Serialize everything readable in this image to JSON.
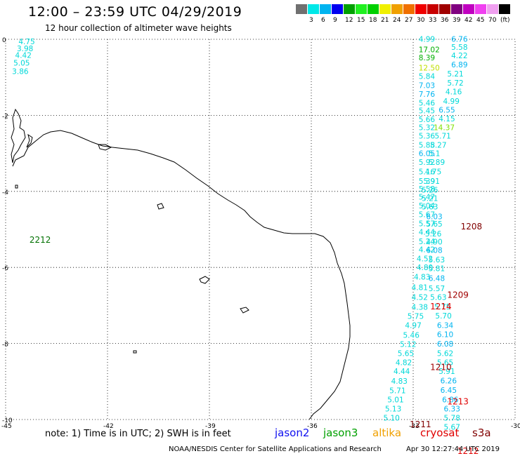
{
  "header": {
    "title": "12:00 – 23:59 UTC 04/29/2019",
    "subtitle": "12 hour collection of altimeter wave heights"
  },
  "colorbar": {
    "cells": [
      {
        "color": "#707070",
        "label": ""
      },
      {
        "color": "#00e8e8",
        "label": "3"
      },
      {
        "color": "#00b4f0",
        "label": "6"
      },
      {
        "color": "#0000f0",
        "label": "9"
      },
      {
        "color": "#00a000",
        "label": "12"
      },
      {
        "color": "#20f020",
        "label": "15"
      },
      {
        "color": "#00d000",
        "label": "18"
      },
      {
        "color": "#f0f000",
        "label": "21"
      },
      {
        "color": "#f0a000",
        "label": "24"
      },
      {
        "color": "#f07000",
        "label": "27"
      },
      {
        "color": "#f00000",
        "label": "30"
      },
      {
        "color": "#c80000",
        "label": "33"
      },
      {
        "color": "#a00000",
        "label": "36"
      },
      {
        "color": "#800080",
        "label": "39"
      },
      {
        "color": "#c000c0",
        "label": "42"
      },
      {
        "color": "#f040f0",
        "label": "45"
      },
      {
        "color": "#f0a0f0",
        "label": "70"
      },
      {
        "color": "#000000",
        "label": "(ft)"
      }
    ]
  },
  "axes": {
    "lon_ticks": [
      "-45",
      "-42",
      "-39",
      "-36",
      "-33",
      "-30"
    ],
    "lat_ticks": [
      "0",
      "-2",
      "-4",
      "-6",
      "-8",
      "-10"
    ]
  },
  "track_labels": [
    {
      "lon": -44.3,
      "lat": -5.35,
      "text": "2212",
      "color": "#007000"
    },
    {
      "lon": -31.6,
      "lat": -5.0,
      "text": "1208",
      "color": "#800000"
    },
    {
      "lon": -32.0,
      "lat": -6.8,
      "text": "1209",
      "color": "#a00000"
    },
    {
      "lon": -32.5,
      "lat": -7.1,
      "text": "1214",
      "color": "#e00000"
    },
    {
      "lon": -32.5,
      "lat": -8.7,
      "text": "1210",
      "color": "#a00000"
    },
    {
      "lon": -32.0,
      "lat": -9.6,
      "text": "1213",
      "color": "#e00000"
    },
    {
      "lon": -33.1,
      "lat": -10.2,
      "text": "1211",
      "color": "#800000"
    },
    {
      "lon": -31.7,
      "lat": -10.9,
      "text": "1212",
      "color": "#e00000"
    }
  ],
  "wave_heights": [
    {
      "lon": -44.62,
      "lat": -0.13,
      "text": "4.75",
      "color": "#00d8d8"
    },
    {
      "lon": -44.67,
      "lat": -0.31,
      "text": "3.98",
      "color": "#00d8d8"
    },
    {
      "lon": -44.72,
      "lat": -0.49,
      "text": "4.42",
      "color": "#00d8d8"
    },
    {
      "lon": -44.77,
      "lat": -0.69,
      "text": "5.05",
      "color": "#00d8d8"
    },
    {
      "lon": -44.81,
      "lat": -0.91,
      "text": "3.86",
      "color": "#00d8d8"
    },
    {
      "lon": -32.84,
      "lat": -0.06,
      "text": "4.99",
      "color": "#00d8d8"
    },
    {
      "lon": -32.84,
      "lat": -0.34,
      "text": "17.02",
      "color": "#00b000"
    },
    {
      "lon": -32.84,
      "lat": -0.55,
      "text": "8.39",
      "color": "#00b000"
    },
    {
      "lon": -32.84,
      "lat": -0.82,
      "text": "12.50",
      "color": "#c0e000"
    },
    {
      "lon": -32.84,
      "lat": -1.04,
      "text": "5.84",
      "color": "#00d8d8"
    },
    {
      "lon": -32.84,
      "lat": -1.28,
      "text": "7.03",
      "color": "#00b4f0"
    },
    {
      "lon": -32.84,
      "lat": -1.51,
      "text": "7.76",
      "color": "#00b4f0"
    },
    {
      "lon": -32.84,
      "lat": -1.74,
      "text": "5.46",
      "color": "#00d8d8"
    },
    {
      "lon": -32.84,
      "lat": -1.95,
      "text": "5.45",
      "color": "#00d8d8"
    },
    {
      "lon": -32.84,
      "lat": -2.18,
      "text": "5.66",
      "color": "#00d8d8"
    },
    {
      "lon": -32.84,
      "lat": -2.39,
      "text": "5.32",
      "color": "#00d8d8"
    },
    {
      "lon": -32.84,
      "lat": -2.61,
      "text": "5.36",
      "color": "#00d8d8"
    },
    {
      "lon": -32.84,
      "lat": -2.85,
      "text": "5.88",
      "color": "#00d8d8"
    },
    {
      "lon": -32.84,
      "lat": -3.07,
      "text": "6.05",
      "color": "#00b4f0"
    },
    {
      "lon": -32.84,
      "lat": -3.3,
      "text": "5.92",
      "color": "#00d8d8"
    },
    {
      "lon": -32.84,
      "lat": -3.55,
      "text": "5.16",
      "color": "#00d8d8"
    },
    {
      "lon": -32.84,
      "lat": -3.8,
      "text": "5.39",
      "color": "#00d8d8"
    },
    {
      "lon": -32.84,
      "lat": -4.0,
      "text": "5.58",
      "color": "#00d8d8"
    },
    {
      "lon": -32.84,
      "lat": -4.22,
      "text": "5.47",
      "color": "#00d8d8"
    },
    {
      "lon": -32.84,
      "lat": -4.45,
      "text": "5.04",
      "color": "#00d8d8"
    },
    {
      "lon": -32.84,
      "lat": -4.68,
      "text": "5.67",
      "color": "#00d8d8"
    },
    {
      "lon": -32.84,
      "lat": -4.92,
      "text": "5.57",
      "color": "#00d8d8"
    },
    {
      "lon": -32.84,
      "lat": -5.14,
      "text": "4.44",
      "color": "#00d8d8"
    },
    {
      "lon": -32.84,
      "lat": -5.39,
      "text": "5.24",
      "color": "#00d8d8"
    },
    {
      "lon": -32.84,
      "lat": -5.6,
      "text": "4.42",
      "color": "#00d8d8"
    },
    {
      "lon": -32.9,
      "lat": -5.84,
      "text": "4.52",
      "color": "#00d8d8"
    },
    {
      "lon": -32.9,
      "lat": -6.07,
      "text": "4.80",
      "color": "#00d8d8"
    },
    {
      "lon": -32.98,
      "lat": -6.32,
      "text": "4.83",
      "color": "#00d8d8"
    },
    {
      "lon": -33.05,
      "lat": -6.6,
      "text": "4.81",
      "color": "#00d8d8"
    },
    {
      "lon": -33.05,
      "lat": -6.85,
      "text": "4.52",
      "color": "#00d8d8"
    },
    {
      "lon": -33.05,
      "lat": -7.11,
      "text": "4.38",
      "color": "#00d8d8"
    },
    {
      "lon": -33.17,
      "lat": -7.35,
      "text": "5.75",
      "color": "#00d8d8"
    },
    {
      "lon": -33.24,
      "lat": -7.59,
      "text": "4.97",
      "color": "#00d8d8"
    },
    {
      "lon": -33.3,
      "lat": -7.85,
      "text": "5.46",
      "color": "#00d8d8"
    },
    {
      "lon": -33.39,
      "lat": -8.09,
      "text": "5.12",
      "color": "#00d8d8"
    },
    {
      "lon": -33.46,
      "lat": -8.33,
      "text": "5.65",
      "color": "#00d8d8"
    },
    {
      "lon": -33.52,
      "lat": -8.57,
      "text": "4.82",
      "color": "#00d8d8"
    },
    {
      "lon": -33.58,
      "lat": -8.8,
      "text": "4.44",
      "color": "#00d8d8"
    },
    {
      "lon": -33.65,
      "lat": -9.06,
      "text": "4.83",
      "color": "#00d8d8"
    },
    {
      "lon": -33.7,
      "lat": -9.31,
      "text": "5.71",
      "color": "#00d8d8"
    },
    {
      "lon": -33.76,
      "lat": -9.55,
      "text": "5.01",
      "color": "#00d8d8"
    },
    {
      "lon": -33.83,
      "lat": -9.79,
      "text": "5.13",
      "color": "#00d8d8"
    },
    {
      "lon": -33.88,
      "lat": -10.03,
      "text": "5.10",
      "color": "#00d8d8"
    },
    {
      "lon": -31.88,
      "lat": -0.06,
      "text": "6.76",
      "color": "#00b4f0"
    },
    {
      "lon": -31.88,
      "lat": -0.28,
      "text": "5.58",
      "color": "#00d8d8"
    },
    {
      "lon": -31.88,
      "lat": -0.5,
      "text": "4.22",
      "color": "#00d8d8"
    },
    {
      "lon": -31.88,
      "lat": -0.74,
      "text": "6.89",
      "color": "#00b4f0"
    },
    {
      "lon": -32.0,
      "lat": -0.98,
      "text": "5.21",
      "color": "#00d8d8"
    },
    {
      "lon": -32.0,
      "lat": -1.22,
      "text": "5.72",
      "color": "#00d8d8"
    },
    {
      "lon": -32.05,
      "lat": -1.45,
      "text": "4.16",
      "color": "#00d8d8"
    },
    {
      "lon": -32.12,
      "lat": -1.7,
      "text": "4.99",
      "color": "#00d8d8"
    },
    {
      "lon": -32.25,
      "lat": -1.93,
      "text": "6.55",
      "color": "#00b4f0"
    },
    {
      "lon": -32.25,
      "lat": -2.16,
      "text": "4.15",
      "color": "#00d8d8"
    },
    {
      "lon": -32.4,
      "lat": -2.39,
      "text": "14.37",
      "color": "#80e000"
    },
    {
      "lon": -32.37,
      "lat": -2.61,
      "text": "5.71",
      "color": "#00d8d8"
    },
    {
      "lon": -32.5,
      "lat": -2.85,
      "text": "5.27",
      "color": "#00d8d8"
    },
    {
      "lon": -32.55,
      "lat": -3.07,
      "text": "5.1",
      "color": "#00d8d8"
    },
    {
      "lon": -32.55,
      "lat": -3.3,
      "text": "5.89",
      "color": "#00d8d8"
    },
    {
      "lon": -32.65,
      "lat": -3.55,
      "text": "4.75",
      "color": "#00d8d8"
    },
    {
      "lon": -32.7,
      "lat": -3.8,
      "text": "5.91",
      "color": "#00d8d8"
    },
    {
      "lon": -32.75,
      "lat": -4.03,
      "text": "5.26",
      "color": "#00d8d8"
    },
    {
      "lon": -32.75,
      "lat": -4.25,
      "text": "5.21",
      "color": "#00d8d8"
    },
    {
      "lon": -32.75,
      "lat": -4.47,
      "text": "5.63",
      "color": "#00d8d8"
    },
    {
      "lon": -32.62,
      "lat": -4.73,
      "text": "6.03",
      "color": "#00b4f0"
    },
    {
      "lon": -32.62,
      "lat": -4.93,
      "text": "5.65",
      "color": "#00d8d8"
    },
    {
      "lon": -32.65,
      "lat": -5.18,
      "text": "5.26",
      "color": "#00d8d8"
    },
    {
      "lon": -32.62,
      "lat": -5.4,
      "text": "4.90",
      "color": "#00d8d8"
    },
    {
      "lon": -32.62,
      "lat": -5.62,
      "text": "6.08",
      "color": "#00b4f0"
    },
    {
      "lon": -32.55,
      "lat": -5.87,
      "text": "5.63",
      "color": "#00d8d8"
    },
    {
      "lon": -32.55,
      "lat": -6.1,
      "text": "5.81",
      "color": "#00d8d8"
    },
    {
      "lon": -32.55,
      "lat": -6.36,
      "text": "6.48",
      "color": "#00b4f0"
    },
    {
      "lon": -32.55,
      "lat": -6.62,
      "text": "5.57",
      "color": "#00d8d8"
    },
    {
      "lon": -32.5,
      "lat": -6.85,
      "text": "5.63",
      "color": "#00d8d8"
    },
    {
      "lon": -32.38,
      "lat": -7.1,
      "text": "5.75",
      "color": "#00d8d8"
    },
    {
      "lon": -32.35,
      "lat": -7.34,
      "text": "5.70",
      "color": "#00d8d8"
    },
    {
      "lon": -32.3,
      "lat": -7.59,
      "text": "6.34",
      "color": "#00b4f0"
    },
    {
      "lon": -32.3,
      "lat": -7.83,
      "text": "6.10",
      "color": "#00b4f0"
    },
    {
      "lon": -32.3,
      "lat": -8.08,
      "text": "6.08",
      "color": "#00b4f0"
    },
    {
      "lon": -32.3,
      "lat": -8.33,
      "text": "5.62",
      "color": "#00d8d8"
    },
    {
      "lon": -32.3,
      "lat": -8.57,
      "text": "5.65",
      "color": "#00d8d8"
    },
    {
      "lon": -32.25,
      "lat": -8.8,
      "text": "5.91",
      "color": "#00d8d8"
    },
    {
      "lon": -32.2,
      "lat": -9.05,
      "text": "6.26",
      "color": "#00b4f0"
    },
    {
      "lon": -32.2,
      "lat": -9.3,
      "text": "6.45",
      "color": "#00b4f0"
    },
    {
      "lon": -32.15,
      "lat": -9.55,
      "text": "6.86",
      "color": "#00b4f0"
    },
    {
      "lon": -32.1,
      "lat": -9.79,
      "text": "6.33",
      "color": "#00b4f0"
    },
    {
      "lon": -32.1,
      "lat": -10.03,
      "text": "5.78",
      "color": "#00d8d8"
    },
    {
      "lon": -32.1,
      "lat": -10.27,
      "text": "5.67",
      "color": "#00d8d8"
    }
  ],
  "note": "note: 1) Time is in UTC; 2) SWH is in feet",
  "satellites": [
    {
      "name": "jason2",
      "color": "#1010f0"
    },
    {
      "name": "jason3",
      "color": "#00a000"
    },
    {
      "name": "altika",
      "color": "#f0a000"
    },
    {
      "name": "cryosat",
      "color": "#e00000"
    },
    {
      "name": "s3a",
      "color": "#800000"
    }
  ],
  "footer": {
    "credit": "NOAA/NESDIS Center for Satellite Applications and Research",
    "timestamp": "Apr 30 12:27:44 UTC 2019"
  }
}
